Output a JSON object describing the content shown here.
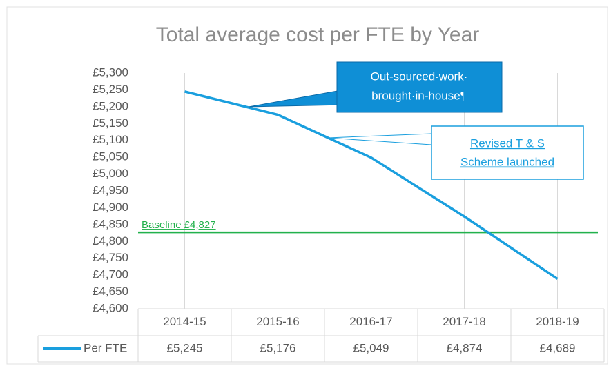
{
  "chart_data": {
    "type": "line",
    "title": "Total average cost per FTE by Year",
    "categories": [
      "2014-15",
      "2015-16",
      "2016-17",
      "2017-18",
      "2018-19"
    ],
    "series": [
      {
        "name": "Per FTE",
        "color": "#1a9fde",
        "values": [
          5245,
          5176,
          5049,
          4874,
          4689
        ],
        "value_labels": [
          "£5,245",
          "£5,176",
          "£5,049",
          "£4,874",
          "£4,689"
        ]
      }
    ],
    "ylim": [
      4600,
      5300
    ],
    "yticks": [
      {
        "value": 4600,
        "label": "£4,600"
      },
      {
        "value": 4650,
        "label": "£4,650"
      },
      {
        "value": 4700,
        "label": "£4,700"
      },
      {
        "value": 4750,
        "label": "£4,750"
      },
      {
        "value": 4800,
        "label": "£4,800"
      },
      {
        "value": 4850,
        "label": "£4,850"
      },
      {
        "value": 4900,
        "label": "£4,900"
      },
      {
        "value": 4950,
        "label": "£4,950"
      },
      {
        "value": 5000,
        "label": "£5,000"
      },
      {
        "value": 5050,
        "label": "£5,050"
      },
      {
        "value": 5100,
        "label": "£5,100"
      },
      {
        "value": 5150,
        "label": "£5,150"
      },
      {
        "value": 5200,
        "label": "£5,200"
      },
      {
        "value": 5250,
        "label": "£5,250"
      },
      {
        "value": 5300,
        "label": "£5,300"
      }
    ],
    "grid": true,
    "baseline": {
      "value": 4827,
      "label": "Baseline £4,827",
      "color": "#22b14c"
    },
    "annotations": [
      {
        "lines": [
          "Out-sourced·work·",
          "brought·in-house¶"
        ]
      },
      {
        "lines": [
          "Revised T & S",
          "Scheme launched"
        ]
      }
    ]
  }
}
